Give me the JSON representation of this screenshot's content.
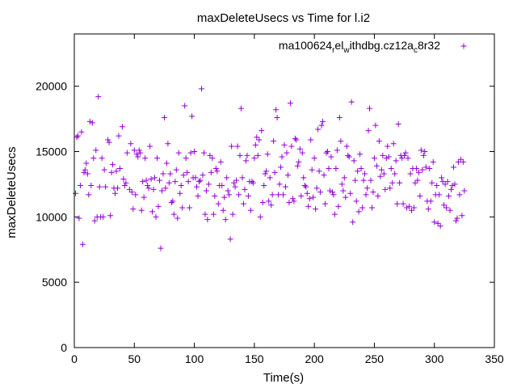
{
  "chart_data": {
    "type": "scatter",
    "title": "maxDeleteUsecs vs Time for l.i2",
    "xlabel": "Time(s)",
    "ylabel": "maxDeleteUsecs",
    "xlim": [
      0,
      350
    ],
    "ylim": [
      0,
      24000
    ],
    "xticks": [
      0,
      50,
      100,
      150,
      200,
      250,
      300,
      350
    ],
    "yticks": [
      0,
      5000,
      10000,
      15000,
      20000
    ],
    "grid": false,
    "legend_position": "top-right",
    "series": [
      {
        "name": "ma100624_rel_withdbg.cz12a_c8r32",
        "color": "#9400d3",
        "marker": "+",
        "points": [
          [
            1,
            11800
          ],
          [
            2,
            16100
          ],
          [
            3,
            16200
          ],
          [
            4,
            9900
          ],
          [
            5,
            12400
          ],
          [
            6,
            16500
          ],
          [
            7,
            7900
          ],
          [
            8,
            13400
          ],
          [
            9,
            13600
          ],
          [
            10,
            14100
          ],
          [
            11,
            13300
          ],
          [
            12,
            11700
          ],
          [
            13,
            17300
          ],
          [
            14,
            12400
          ],
          [
            15,
            17200
          ],
          [
            16,
            14500
          ],
          [
            17,
            9700
          ],
          [
            18,
            15100
          ],
          [
            19,
            10000
          ],
          [
            20,
            19200
          ],
          [
            21,
            12300
          ],
          [
            22,
            10000
          ],
          [
            23,
            14500
          ],
          [
            24,
            10000
          ],
          [
            25,
            13600
          ],
          [
            26,
            12300
          ],
          [
            28,
            15900
          ],
          [
            29,
            15700
          ],
          [
            30,
            10100
          ],
          [
            31,
            13400
          ],
          [
            32,
            14000
          ],
          [
            33,
            12200
          ],
          [
            34,
            11800
          ],
          [
            35,
            13500
          ],
          [
            36,
            12200
          ],
          [
            37,
            16200
          ],
          [
            38,
            13700
          ],
          [
            40,
            16900
          ],
          [
            41,
            12900
          ],
          [
            42,
            12400
          ],
          [
            43,
            12600
          ],
          [
            44,
            14900
          ],
          [
            46,
            12100
          ],
          [
            47,
            15600
          ],
          [
            48,
            11900
          ],
          [
            49,
            10600
          ],
          [
            50,
            15100
          ],
          [
            51,
            11700
          ],
          [
            52,
            14800
          ],
          [
            53,
            14600
          ],
          [
            54,
            15100
          ],
          [
            55,
            14900
          ],
          [
            56,
            10500
          ],
          [
            57,
            12700
          ],
          [
            58,
            11500
          ],
          [
            59,
            14500
          ],
          [
            60,
            12800
          ],
          [
            61,
            12400
          ],
          [
            62,
            12200
          ],
          [
            63,
            15400
          ],
          [
            64,
            12900
          ],
          [
            65,
            10400
          ],
          [
            66,
            12100
          ],
          [
            67,
            13000
          ],
          [
            68,
            10000
          ],
          [
            69,
            14500
          ],
          [
            70,
            10800
          ],
          [
            71,
            12800
          ],
          [
            72,
            7600
          ],
          [
            73,
            12000
          ],
          [
            74,
            13300
          ],
          [
            75,
            17600
          ],
          [
            76,
            12200
          ],
          [
            77,
            14100
          ],
          [
            78,
            15600
          ],
          [
            79,
            12600
          ],
          [
            80,
            13300
          ],
          [
            81,
            11100
          ],
          [
            82,
            11200
          ],
          [
            83,
            10200
          ],
          [
            84,
            12700
          ],
          [
            85,
            13600
          ],
          [
            86,
            9900
          ],
          [
            87,
            14900
          ],
          [
            88,
            11800
          ],
          [
            89,
            12400
          ],
          [
            90,
            10700
          ],
          [
            91,
            13200
          ],
          [
            92,
            18500
          ],
          [
            93,
            14500
          ],
          [
            94,
            13400
          ],
          [
            95,
            12700
          ],
          [
            96,
            10700
          ],
          [
            97,
            14900
          ],
          [
            98,
            17700
          ],
          [
            99,
            13000
          ],
          [
            100,
            15000
          ],
          [
            101,
            13000
          ],
          [
            102,
            12300
          ],
          [
            103,
            11600
          ],
          [
            104,
            12700
          ],
          [
            105,
            12800
          ],
          [
            106,
            19800
          ],
          [
            107,
            13200
          ],
          [
            108,
            14900
          ],
          [
            109,
            10200
          ],
          [
            110,
            12000
          ],
          [
            111,
            9800
          ],
          [
            112,
            12500
          ],
          [
            113,
            14700
          ],
          [
            114,
            13400
          ],
          [
            115,
            14500
          ],
          [
            116,
            10200
          ],
          [
            117,
            11600
          ],
          [
            118,
            13700
          ],
          [
            119,
            13500
          ],
          [
            120,
            11000
          ],
          [
            121,
            12400
          ],
          [
            122,
            14200
          ],
          [
            123,
            12400
          ],
          [
            124,
            10500
          ],
          [
            125,
            11500
          ],
          [
            126,
            9800
          ],
          [
            127,
            13000
          ],
          [
            128,
            12000
          ],
          [
            129,
            11700
          ],
          [
            130,
            8300
          ],
          [
            131,
            15400
          ],
          [
            132,
            10200
          ],
          [
            133,
            12600
          ],
          [
            134,
            12300
          ],
          [
            135,
            12800
          ],
          [
            136,
            15400
          ],
          [
            137,
            11700
          ],
          [
            138,
            14700
          ],
          [
            139,
            18300
          ],
          [
            140,
            13000
          ],
          [
            141,
            11000
          ],
          [
            142,
            12100
          ],
          [
            143,
            14300
          ],
          [
            144,
            14700
          ],
          [
            145,
            11600
          ],
          [
            146,
            12700
          ],
          [
            147,
            10500
          ],
          [
            148,
            12700
          ],
          [
            149,
            12600
          ],
          [
            150,
            14500
          ],
          [
            151,
            15500
          ],
          [
            152,
            16100
          ],
          [
            153,
            14700
          ],
          [
            154,
            15900
          ],
          [
            155,
            10000
          ],
          [
            156,
            16600
          ],
          [
            157,
            11100
          ],
          [
            158,
            12400
          ],
          [
            159,
            13300
          ],
          [
            160,
            13500
          ],
          [
            161,
            14800
          ],
          [
            162,
            11200
          ],
          [
            163,
            13000
          ],
          [
            164,
            10900
          ],
          [
            165,
            11700
          ],
          [
            166,
            15800
          ],
          [
            167,
            13400
          ],
          [
            168,
            18200
          ],
          [
            169,
            17600
          ],
          [
            170,
            11700
          ],
          [
            171,
            12500
          ],
          [
            172,
            13800
          ],
          [
            173,
            14600
          ],
          [
            174,
            11700
          ],
          [
            175,
            15500
          ],
          [
            176,
            12300
          ],
          [
            177,
            14900
          ],
          [
            178,
            13200
          ],
          [
            179,
            11100
          ],
          [
            180,
            18700
          ],
          [
            181,
            15400
          ],
          [
            182,
            11400
          ],
          [
            183,
            11200
          ],
          [
            184,
            16000
          ],
          [
            185,
            15900
          ],
          [
            186,
            13900
          ],
          [
            187,
            14200
          ],
          [
            188,
            15200
          ],
          [
            189,
            11600
          ],
          [
            190,
            14900
          ],
          [
            191,
            13000
          ],
          [
            192,
            12400
          ],
          [
            193,
            12300
          ],
          [
            194,
            11800
          ],
          [
            195,
            10800
          ],
          [
            196,
            11400
          ],
          [
            197,
            15900
          ],
          [
            198,
            13600
          ],
          [
            199,
            11500
          ],
          [
            200,
            14500
          ],
          [
            201,
            10600
          ],
          [
            202,
            12200
          ],
          [
            203,
            16700
          ],
          [
            204,
            13500
          ],
          [
            205,
            11900
          ],
          [
            206,
            17000
          ],
          [
            207,
            17300
          ],
          [
            208,
            13200
          ],
          [
            209,
            11000
          ],
          [
            210,
            14900
          ],
          [
            211,
            15000
          ],
          [
            212,
            13700
          ],
          [
            213,
            12000
          ],
          [
            214,
            14600
          ],
          [
            215,
            11900
          ],
          [
            216,
            11700
          ],
          [
            217,
            10200
          ],
          [
            218,
            13700
          ],
          [
            219,
            15100
          ],
          [
            220,
            10800
          ],
          [
            221,
            17600
          ],
          [
            222,
            15800
          ],
          [
            223,
            12500
          ],
          [
            224,
            12000
          ],
          [
            225,
            13000
          ],
          [
            226,
            11500
          ],
          [
            227,
            15400
          ],
          [
            228,
            14700
          ],
          [
            229,
            14600
          ],
          [
            230,
            11800
          ],
          [
            231,
            18800
          ],
          [
            232,
            9600
          ],
          [
            233,
            14300
          ],
          [
            234,
            12800
          ],
          [
            235,
            11200
          ],
          [
            236,
            13500
          ],
          [
            237,
            10400
          ],
          [
            238,
            14800
          ],
          [
            239,
            13700
          ],
          [
            240,
            10700
          ],
          [
            241,
            12800
          ],
          [
            242,
            13300
          ],
          [
            243,
            11700
          ],
          [
            244,
            12200
          ],
          [
            245,
            16600
          ],
          [
            246,
            18300
          ],
          [
            247,
            12800
          ],
          [
            248,
            10700
          ],
          [
            249,
            11900
          ],
          [
            250,
            14500
          ],
          [
            251,
            17000
          ],
          [
            252,
            13900
          ],
          [
            253,
            11600
          ],
          [
            254,
            15800
          ],
          [
            255,
            13100
          ],
          [
            256,
            13600
          ],
          [
            257,
            14700
          ],
          [
            258,
            13300
          ],
          [
            259,
            12100
          ],
          [
            260,
            14500
          ],
          [
            261,
            15400
          ],
          [
            262,
            14600
          ],
          [
            263,
            12200
          ],
          [
            264,
            13700
          ],
          [
            265,
            12600
          ],
          [
            266,
            15600
          ],
          [
            267,
            13300
          ],
          [
            268,
            14300
          ],
          [
            269,
            11000
          ],
          [
            270,
            17100
          ],
          [
            271,
            12600
          ],
          [
            272,
            14700
          ],
          [
            273,
            14500
          ],
          [
            274,
            11000
          ],
          [
            275,
            14700
          ],
          [
            276,
            14900
          ],
          [
            277,
            10700
          ],
          [
            278,
            14500
          ],
          [
            279,
            10800
          ],
          [
            280,
            13300
          ],
          [
            281,
            10500
          ],
          [
            282,
            13700
          ],
          [
            283,
            10700
          ],
          [
            284,
            12600
          ],
          [
            285,
            13700
          ],
          [
            286,
            12800
          ],
          [
            287,
            13400
          ],
          [
            288,
            11600
          ],
          [
            289,
            15100
          ],
          [
            290,
            13600
          ],
          [
            291,
            14700
          ],
          [
            292,
            15000
          ],
          [
            293,
            13800
          ],
          [
            294,
            11200
          ],
          [
            295,
            10600
          ],
          [
            296,
            13700
          ],
          [
            297,
            11200
          ],
          [
            298,
            12600
          ],
          [
            299,
            14200
          ],
          [
            300,
            9600
          ],
          [
            301,
            11700
          ],
          [
            302,
            12400
          ],
          [
            303,
            9500
          ],
          [
            304,
            11700
          ],
          [
            305,
            9300
          ],
          [
            306,
            13000
          ],
          [
            307,
            12700
          ],
          [
            308,
            10900
          ],
          [
            309,
            12500
          ],
          [
            310,
            10700
          ],
          [
            311,
            12700
          ],
          [
            312,
            11600
          ],
          [
            313,
            10500
          ],
          [
            314,
            12100
          ],
          [
            315,
            12400
          ],
          [
            316,
            13800
          ],
          [
            317,
            12500
          ],
          [
            318,
            9700
          ],
          [
            319,
            9900
          ],
          [
            320,
            14200
          ],
          [
            321,
            11700
          ],
          [
            322,
            14400
          ],
          [
            323,
            10100
          ],
          [
            324,
            14200
          ],
          [
            325,
            12000
          ]
        ]
      }
    ]
  }
}
